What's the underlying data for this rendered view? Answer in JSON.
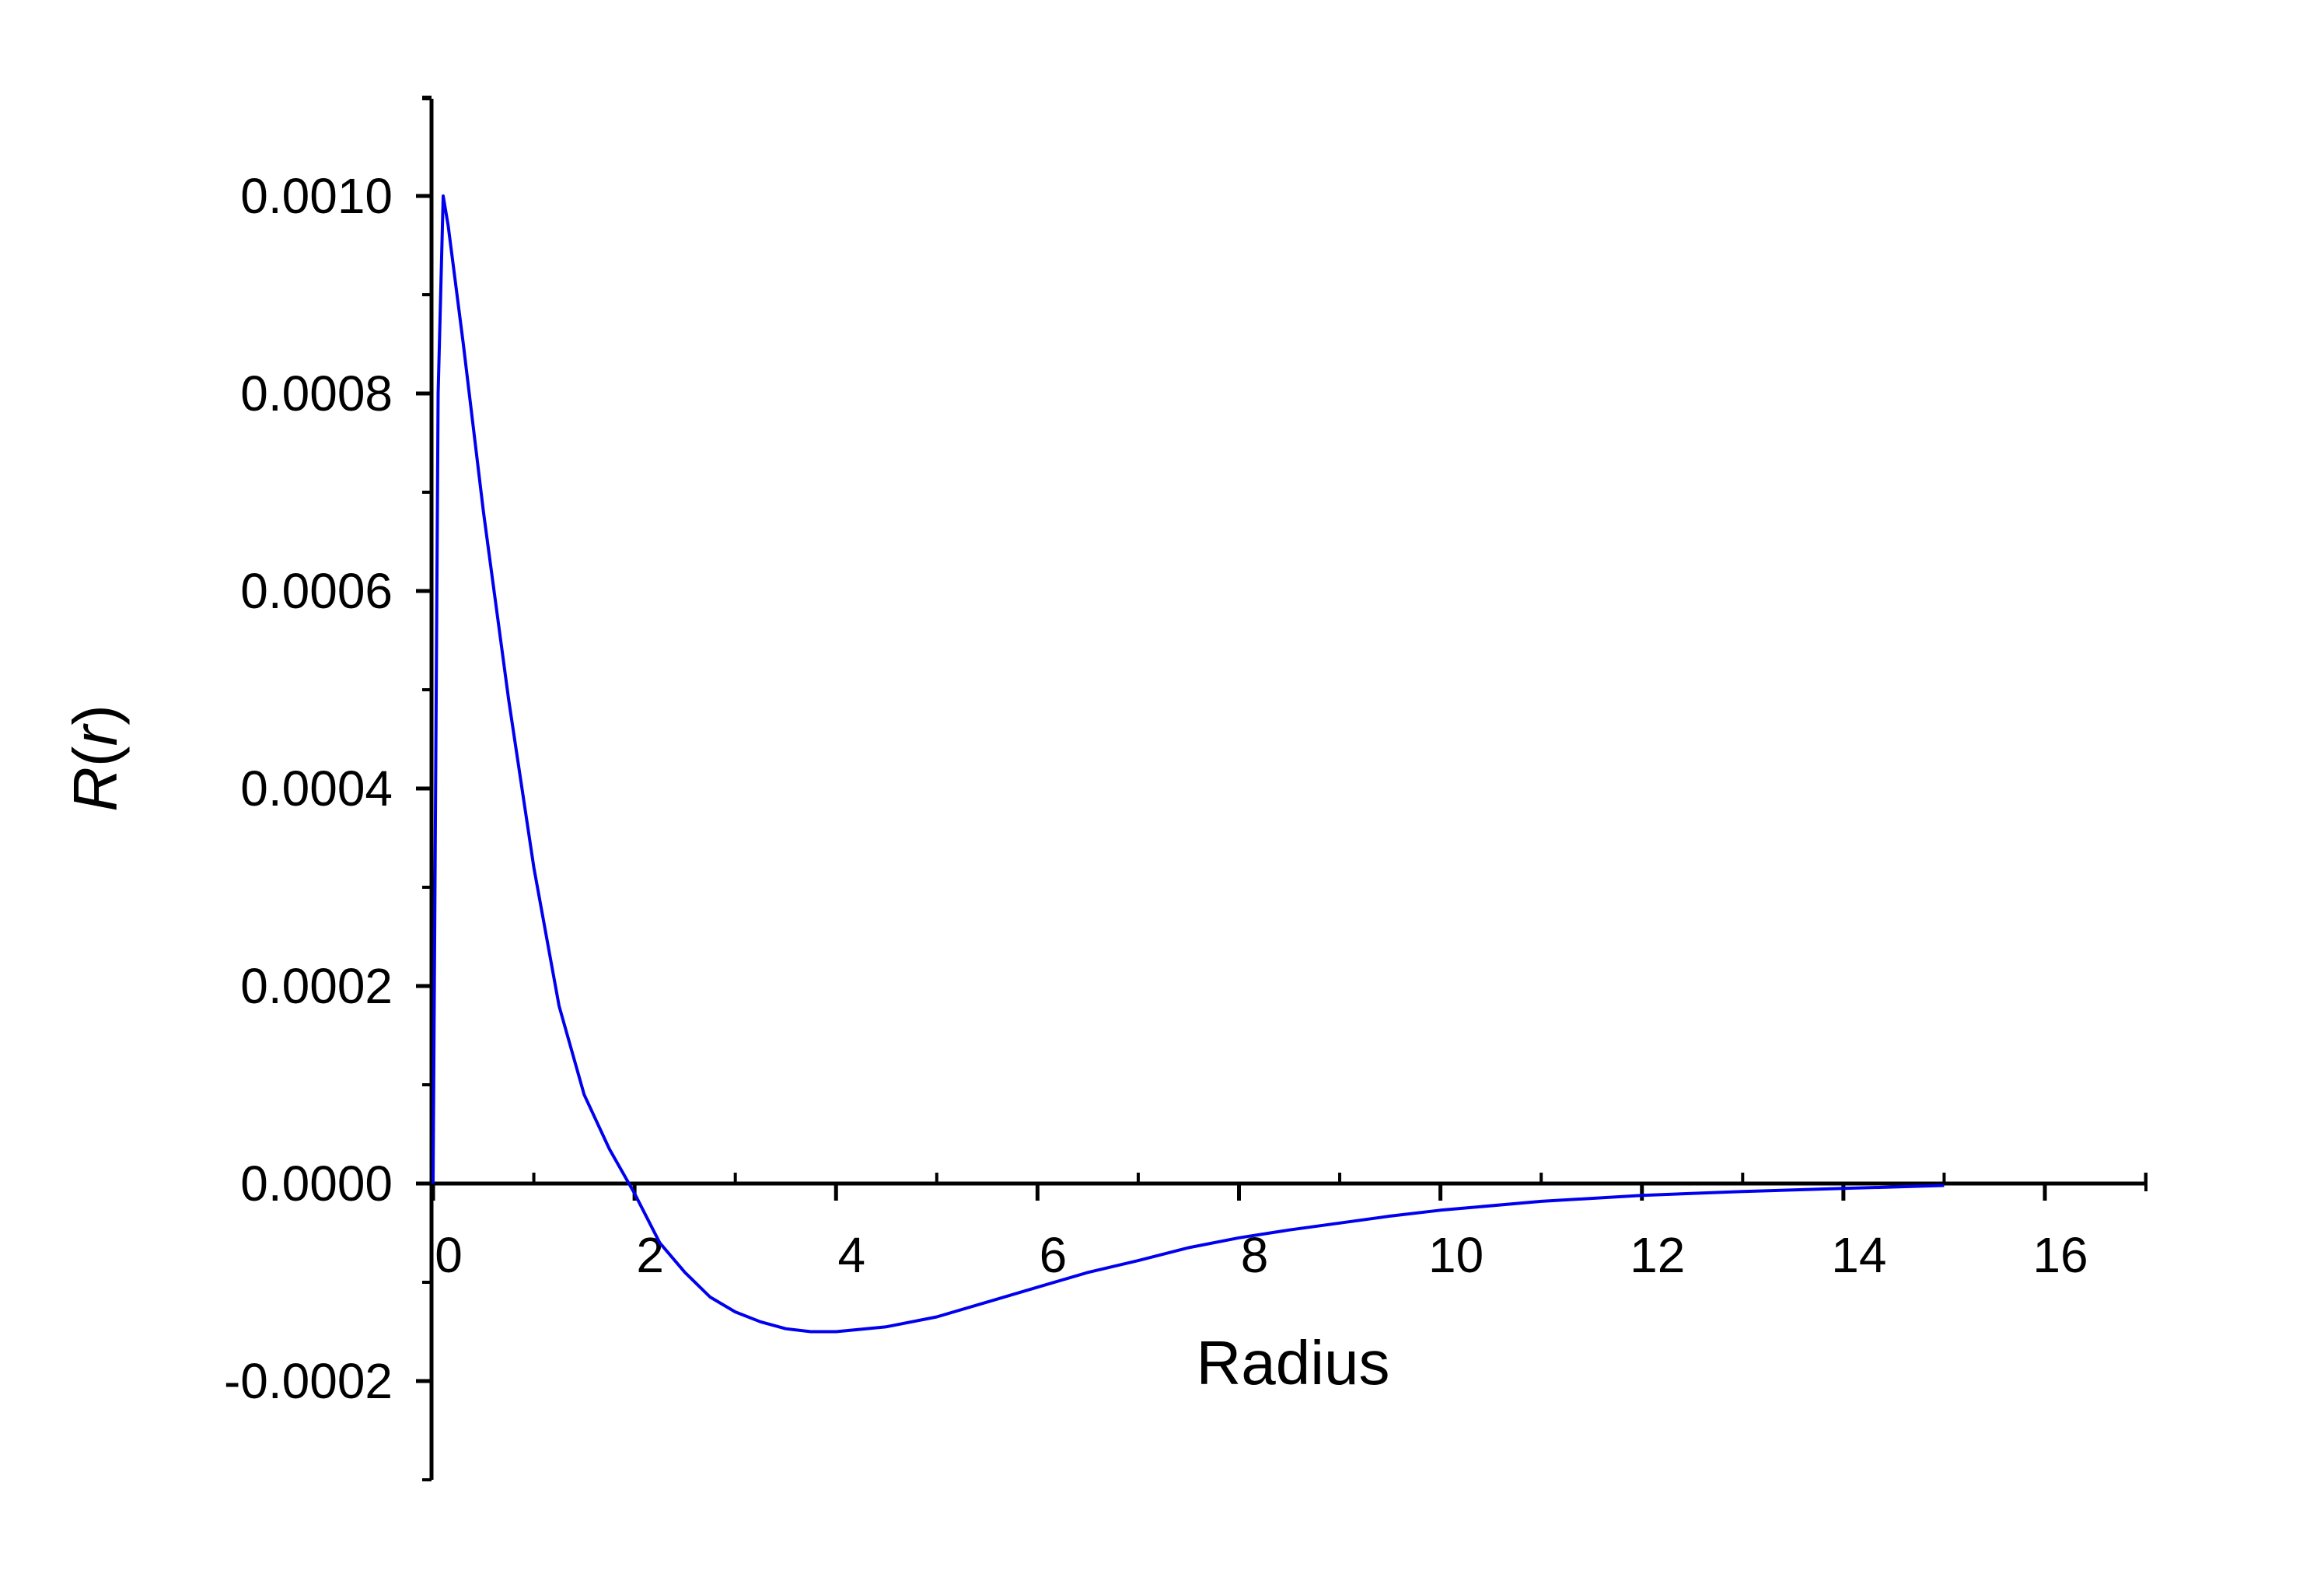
{
  "colors": {
    "series": "#0000ee",
    "axis": "#000000",
    "background": "#ffffff"
  },
  "chart_data": {
    "type": "line",
    "title": "",
    "xlabel": "Radius",
    "ylabel": "R(r)",
    "ylabel_parts": {
      "italic_main": "R",
      "open": "(",
      "italic_arg": "r",
      "close": ")"
    },
    "xlim": [
      0,
      17
    ],
    "ylim": [
      -0.0003,
      0.0011
    ],
    "x_ticks": [
      0,
      2,
      4,
      6,
      8,
      10,
      12,
      14,
      16
    ],
    "x_tick_labels": [
      "0",
      "2",
      "4",
      "6",
      "8",
      "10",
      "12",
      "14",
      "16"
    ],
    "x_minor_step": 1,
    "y_ticks": [
      -0.0002,
      0,
      0.0002,
      0.0004,
      0.0006,
      0.0008,
      0.001
    ],
    "y_tick_labels": [
      "-0.0002",
      "0.0000",
      "0.0002",
      "0.0004",
      "0.0006",
      "0.0008",
      "0.0010"
    ],
    "y_minor_step": 0.0001,
    "grid": false,
    "legend": "none",
    "series": [
      {
        "x": [
          0,
          0.05,
          0.1,
          0.15,
          0.3,
          0.5,
          0.75,
          1.0,
          1.25,
          1.5,
          1.75,
          2.0,
          2.25,
          2.5,
          2.75,
          3.0,
          3.25,
          3.5,
          3.75,
          4.0,
          4.5,
          5.0,
          5.5,
          6.0,
          6.5,
          7.0,
          7.5,
          8.0,
          8.5,
          9.0,
          9.5,
          10.0,
          11.0,
          12.0,
          13.0,
          14.0,
          15.0
        ],
        "values": [
          0,
          0.0008,
          0.001,
          0.00097,
          0.00085,
          0.00068,
          0.00049,
          0.00032,
          0.00018,
          9e-05,
          3.5e-05,
          -1e-05,
          -6e-05,
          -9e-05,
          -0.000115,
          -0.00013,
          -0.00014,
          -0.000147,
          -0.00015,
          -0.00015,
          -0.000145,
          -0.000135,
          -0.00012,
          -0.000105,
          -9e-05,
          -7.8e-05,
          -6.5e-05,
          -5.5e-05,
          -4.7e-05,
          -4e-05,
          -3.3e-05,
          -2.7e-05,
          -1.8e-05,
          -1.2e-05,
          -8e-06,
          -5e-06,
          -2e-06
        ]
      }
    ]
  }
}
